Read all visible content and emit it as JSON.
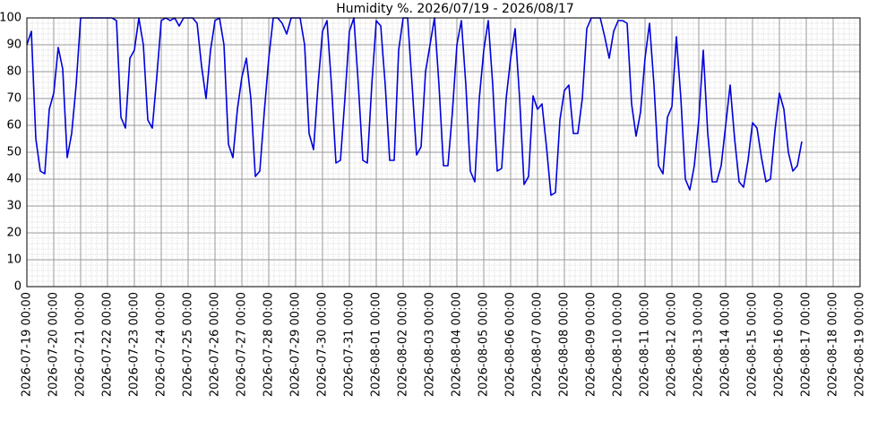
{
  "chart_data": {
    "type": "line",
    "title": "Humidity %. 2026/07/19 - 2026/08/17",
    "x": [
      "2026-07-19 00:00",
      "2026-07-19 04:00",
      "2026-07-19 08:00",
      "2026-07-19 12:00",
      "2026-07-19 16:00",
      "2026-07-19 20:00",
      "2026-07-20 00:00",
      "2026-07-20 04:00",
      "2026-07-20 08:00",
      "2026-07-20 12:00",
      "2026-07-20 16:00",
      "2026-07-20 20:00",
      "2026-07-21 00:00",
      "2026-07-21 04:00",
      "2026-07-21 08:00",
      "2026-07-21 12:00",
      "2026-07-21 16:00",
      "2026-07-21 20:00",
      "2026-07-22 00:00",
      "2026-07-22 04:00",
      "2026-07-22 08:00",
      "2026-07-22 12:00",
      "2026-07-22 16:00",
      "2026-07-22 20:00",
      "2026-07-23 00:00",
      "2026-07-23 04:00",
      "2026-07-23 08:00",
      "2026-07-23 12:00",
      "2026-07-23 16:00",
      "2026-07-23 20:00",
      "2026-07-24 00:00",
      "2026-07-24 04:00",
      "2026-07-24 08:00",
      "2026-07-24 12:00",
      "2026-07-24 16:00",
      "2026-07-24 20:00",
      "2026-07-25 00:00",
      "2026-07-25 04:00",
      "2026-07-25 08:00",
      "2026-07-25 12:00",
      "2026-07-25 16:00",
      "2026-07-25 20:00",
      "2026-07-26 00:00",
      "2026-07-26 04:00",
      "2026-07-26 08:00",
      "2026-07-26 12:00",
      "2026-07-26 16:00",
      "2026-07-26 20:00",
      "2026-07-27 00:00",
      "2026-07-27 04:00",
      "2026-07-27 08:00",
      "2026-07-27 12:00",
      "2026-07-27 16:00",
      "2026-07-27 20:00",
      "2026-07-28 00:00",
      "2026-07-28 04:00",
      "2026-07-28 08:00",
      "2026-07-28 12:00",
      "2026-07-28 16:00",
      "2026-07-28 20:00",
      "2026-07-29 00:00",
      "2026-07-29 04:00",
      "2026-07-29 08:00",
      "2026-07-29 12:00",
      "2026-07-29 16:00",
      "2026-07-29 20:00",
      "2026-07-30 00:00",
      "2026-07-30 04:00",
      "2026-07-30 08:00",
      "2026-07-30 12:00",
      "2026-07-30 16:00",
      "2026-07-30 20:00",
      "2026-07-31 00:00",
      "2026-07-31 04:00",
      "2026-07-31 08:00",
      "2026-07-31 12:00",
      "2026-07-31 16:00",
      "2026-07-31 20:00",
      "2026-08-01 00:00",
      "2026-08-01 04:00",
      "2026-08-01 08:00",
      "2026-08-01 12:00",
      "2026-08-01 16:00",
      "2026-08-01 20:00",
      "2026-08-02 00:00",
      "2026-08-02 04:00",
      "2026-08-02 08:00",
      "2026-08-02 12:00",
      "2026-08-02 16:00",
      "2026-08-02 20:00",
      "2026-08-03 00:00",
      "2026-08-03 04:00",
      "2026-08-03 08:00",
      "2026-08-03 12:00",
      "2026-08-03 16:00",
      "2026-08-03 20:00",
      "2026-08-04 00:00",
      "2026-08-04 04:00",
      "2026-08-04 08:00",
      "2026-08-04 12:00",
      "2026-08-04 16:00",
      "2026-08-04 20:00",
      "2026-08-05 00:00",
      "2026-08-05 04:00",
      "2026-08-05 08:00",
      "2026-08-05 12:00",
      "2026-08-05 16:00",
      "2026-08-05 20:00",
      "2026-08-06 00:00",
      "2026-08-06 04:00",
      "2026-08-06 08:00",
      "2026-08-06 12:00",
      "2026-08-06 16:00",
      "2026-08-06 20:00",
      "2026-08-07 00:00",
      "2026-08-07 04:00",
      "2026-08-07 08:00",
      "2026-08-07 12:00",
      "2026-08-07 16:00",
      "2026-08-07 20:00",
      "2026-08-08 00:00",
      "2026-08-08 04:00",
      "2026-08-08 08:00",
      "2026-08-08 12:00",
      "2026-08-08 16:00",
      "2026-08-08 20:00",
      "2026-08-09 00:00",
      "2026-08-09 04:00",
      "2026-08-09 08:00",
      "2026-08-09 12:00",
      "2026-08-09 16:00",
      "2026-08-09 20:00",
      "2026-08-10 00:00",
      "2026-08-10 04:00",
      "2026-08-10 08:00",
      "2026-08-10 12:00",
      "2026-08-10 16:00",
      "2026-08-10 20:00",
      "2026-08-11 00:00",
      "2026-08-11 04:00",
      "2026-08-11 08:00",
      "2026-08-11 12:00",
      "2026-08-11 16:00",
      "2026-08-11 20:00",
      "2026-08-12 00:00",
      "2026-08-12 04:00",
      "2026-08-12 08:00",
      "2026-08-12 12:00",
      "2026-08-12 16:00",
      "2026-08-12 20:00",
      "2026-08-13 00:00",
      "2026-08-13 04:00",
      "2026-08-13 08:00",
      "2026-08-13 12:00",
      "2026-08-13 16:00",
      "2026-08-13 20:00",
      "2026-08-14 00:00",
      "2026-08-14 04:00",
      "2026-08-14 08:00",
      "2026-08-14 12:00",
      "2026-08-14 16:00",
      "2026-08-14 20:00",
      "2026-08-15 00:00",
      "2026-08-15 04:00",
      "2026-08-15 08:00",
      "2026-08-15 12:00",
      "2026-08-15 16:00",
      "2026-08-15 20:00",
      "2026-08-16 00:00",
      "2026-08-16 04:00",
      "2026-08-16 08:00",
      "2026-08-16 12:00",
      "2026-08-16 16:00",
      "2026-08-16 20:00"
    ],
    "values": [
      90,
      95,
      55,
      43,
      42,
      66,
      72,
      89,
      81,
      48,
      57,
      75,
      100,
      100,
      100,
      100,
      100,
      100,
      100,
      100,
      99,
      63,
      59,
      85,
      88,
      100,
      90,
      62,
      59,
      78,
      99,
      100,
      99,
      100,
      97,
      100,
      100,
      100,
      98,
      82,
      70,
      88,
      99,
      100,
      90,
      53,
      48,
      66,
      78,
      85,
      70,
      41,
      43,
      65,
      85,
      100,
      100,
      98,
      94,
      100,
      100,
      100,
      90,
      57,
      51,
      75,
      95,
      99,
      75,
      46,
      47,
      70,
      95,
      100,
      75,
      47,
      46,
      75,
      99,
      97,
      75,
      47,
      47,
      88,
      100,
      100,
      75,
      49,
      52,
      80,
      90,
      100,
      75,
      45,
      45,
      65,
      90,
      99,
      75,
      43,
      39,
      70,
      88,
      99,
      75,
      43,
      44,
      70,
      85,
      96,
      70,
      38,
      41,
      71,
      66,
      68,
      52,
      34,
      35,
      62,
      73,
      75,
      57,
      57,
      70,
      96,
      100,
      100,
      100,
      93,
      85,
      95,
      99,
      99,
      98,
      68,
      56,
      65,
      85,
      98,
      75,
      45,
      42,
      63,
      67,
      93,
      70,
      40,
      36,
      45,
      62,
      88,
      57,
      39,
      39,
      45,
      60,
      75,
      55,
      39,
      37,
      47,
      61,
      59,
      48,
      39,
      40,
      58,
      72,
      66,
      50,
      43,
      45,
      54
    ],
    "color": "#0000dd",
    "xlim": [
      "2026-07-19 00:00",
      "2026-08-19 00:00"
    ],
    "xticks": [
      "2026-07-19 00:00",
      "2026-07-20 00:00",
      "2026-07-21 00:00",
      "2026-07-22 00:00",
      "2026-07-23 00:00",
      "2026-07-24 00:00",
      "2026-07-25 00:00",
      "2026-07-26 00:00",
      "2026-07-27 00:00",
      "2026-07-28 00:00",
      "2026-07-29 00:00",
      "2026-07-30 00:00",
      "2026-07-31 00:00",
      "2026-08-01 00:00",
      "2026-08-02 00:00",
      "2026-08-03 00:00",
      "2026-08-04 00:00",
      "2026-08-05 00:00",
      "2026-08-06 00:00",
      "2026-08-07 00:00",
      "2026-08-08 00:00",
      "2026-08-09 00:00",
      "2026-08-10 00:00",
      "2026-08-11 00:00",
      "2026-08-12 00:00",
      "2026-08-13 00:00",
      "2026-08-14 00:00",
      "2026-08-15 00:00",
      "2026-08-16 00:00",
      "2026-08-17 00:00",
      "2026-08-18 00:00",
      "2026-08-19 00:00"
    ],
    "ylim": [
      0,
      100
    ],
    "yticks": [
      0,
      10,
      20,
      30,
      40,
      50,
      60,
      70,
      80,
      90,
      100
    ],
    "grid": true,
    "minor_grid": true
  }
}
